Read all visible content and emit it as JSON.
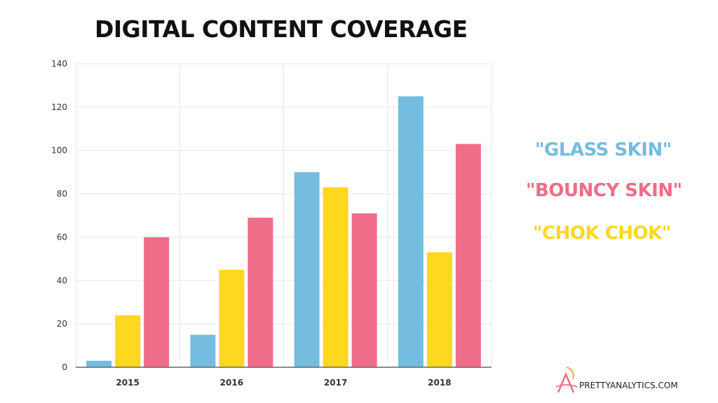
{
  "chart_data": {
    "type": "bar",
    "title": "DIGITAL CONTENT COVERAGE",
    "categories": [
      "2015",
      "2016",
      "2017",
      "2018"
    ],
    "series": [
      {
        "name": "\"GLASS SKIN\"",
        "color": "#74bde0",
        "values": [
          3,
          15,
          90,
          125
        ]
      },
      {
        "name": "\"CHOK CHOK\"",
        "color": "#fed71f",
        "values": [
          24,
          45,
          83,
          53
        ]
      },
      {
        "name": "\"BOUNCY SKIN\"",
        "color": "#ef6d89",
        "values": [
          60,
          69,
          71,
          103
        ]
      }
    ],
    "ylim": [
      0,
      140
    ],
    "yticks": [
      0,
      20,
      40,
      60,
      80,
      100,
      120,
      140
    ],
    "grid": true,
    "xlabel": "",
    "ylabel": "",
    "legend_position": "right"
  },
  "legend": [
    {
      "label": "\"GLASS SKIN\"",
      "color": "#74bde0"
    },
    {
      "label": "\"BOUNCY SKIN\"",
      "color": "#ef6d89"
    },
    {
      "label": "\"CHOK CHOK\"",
      "color": "#fed71f"
    }
  ],
  "logo": {
    "text": "PRETTYANALYTICS.COM"
  }
}
